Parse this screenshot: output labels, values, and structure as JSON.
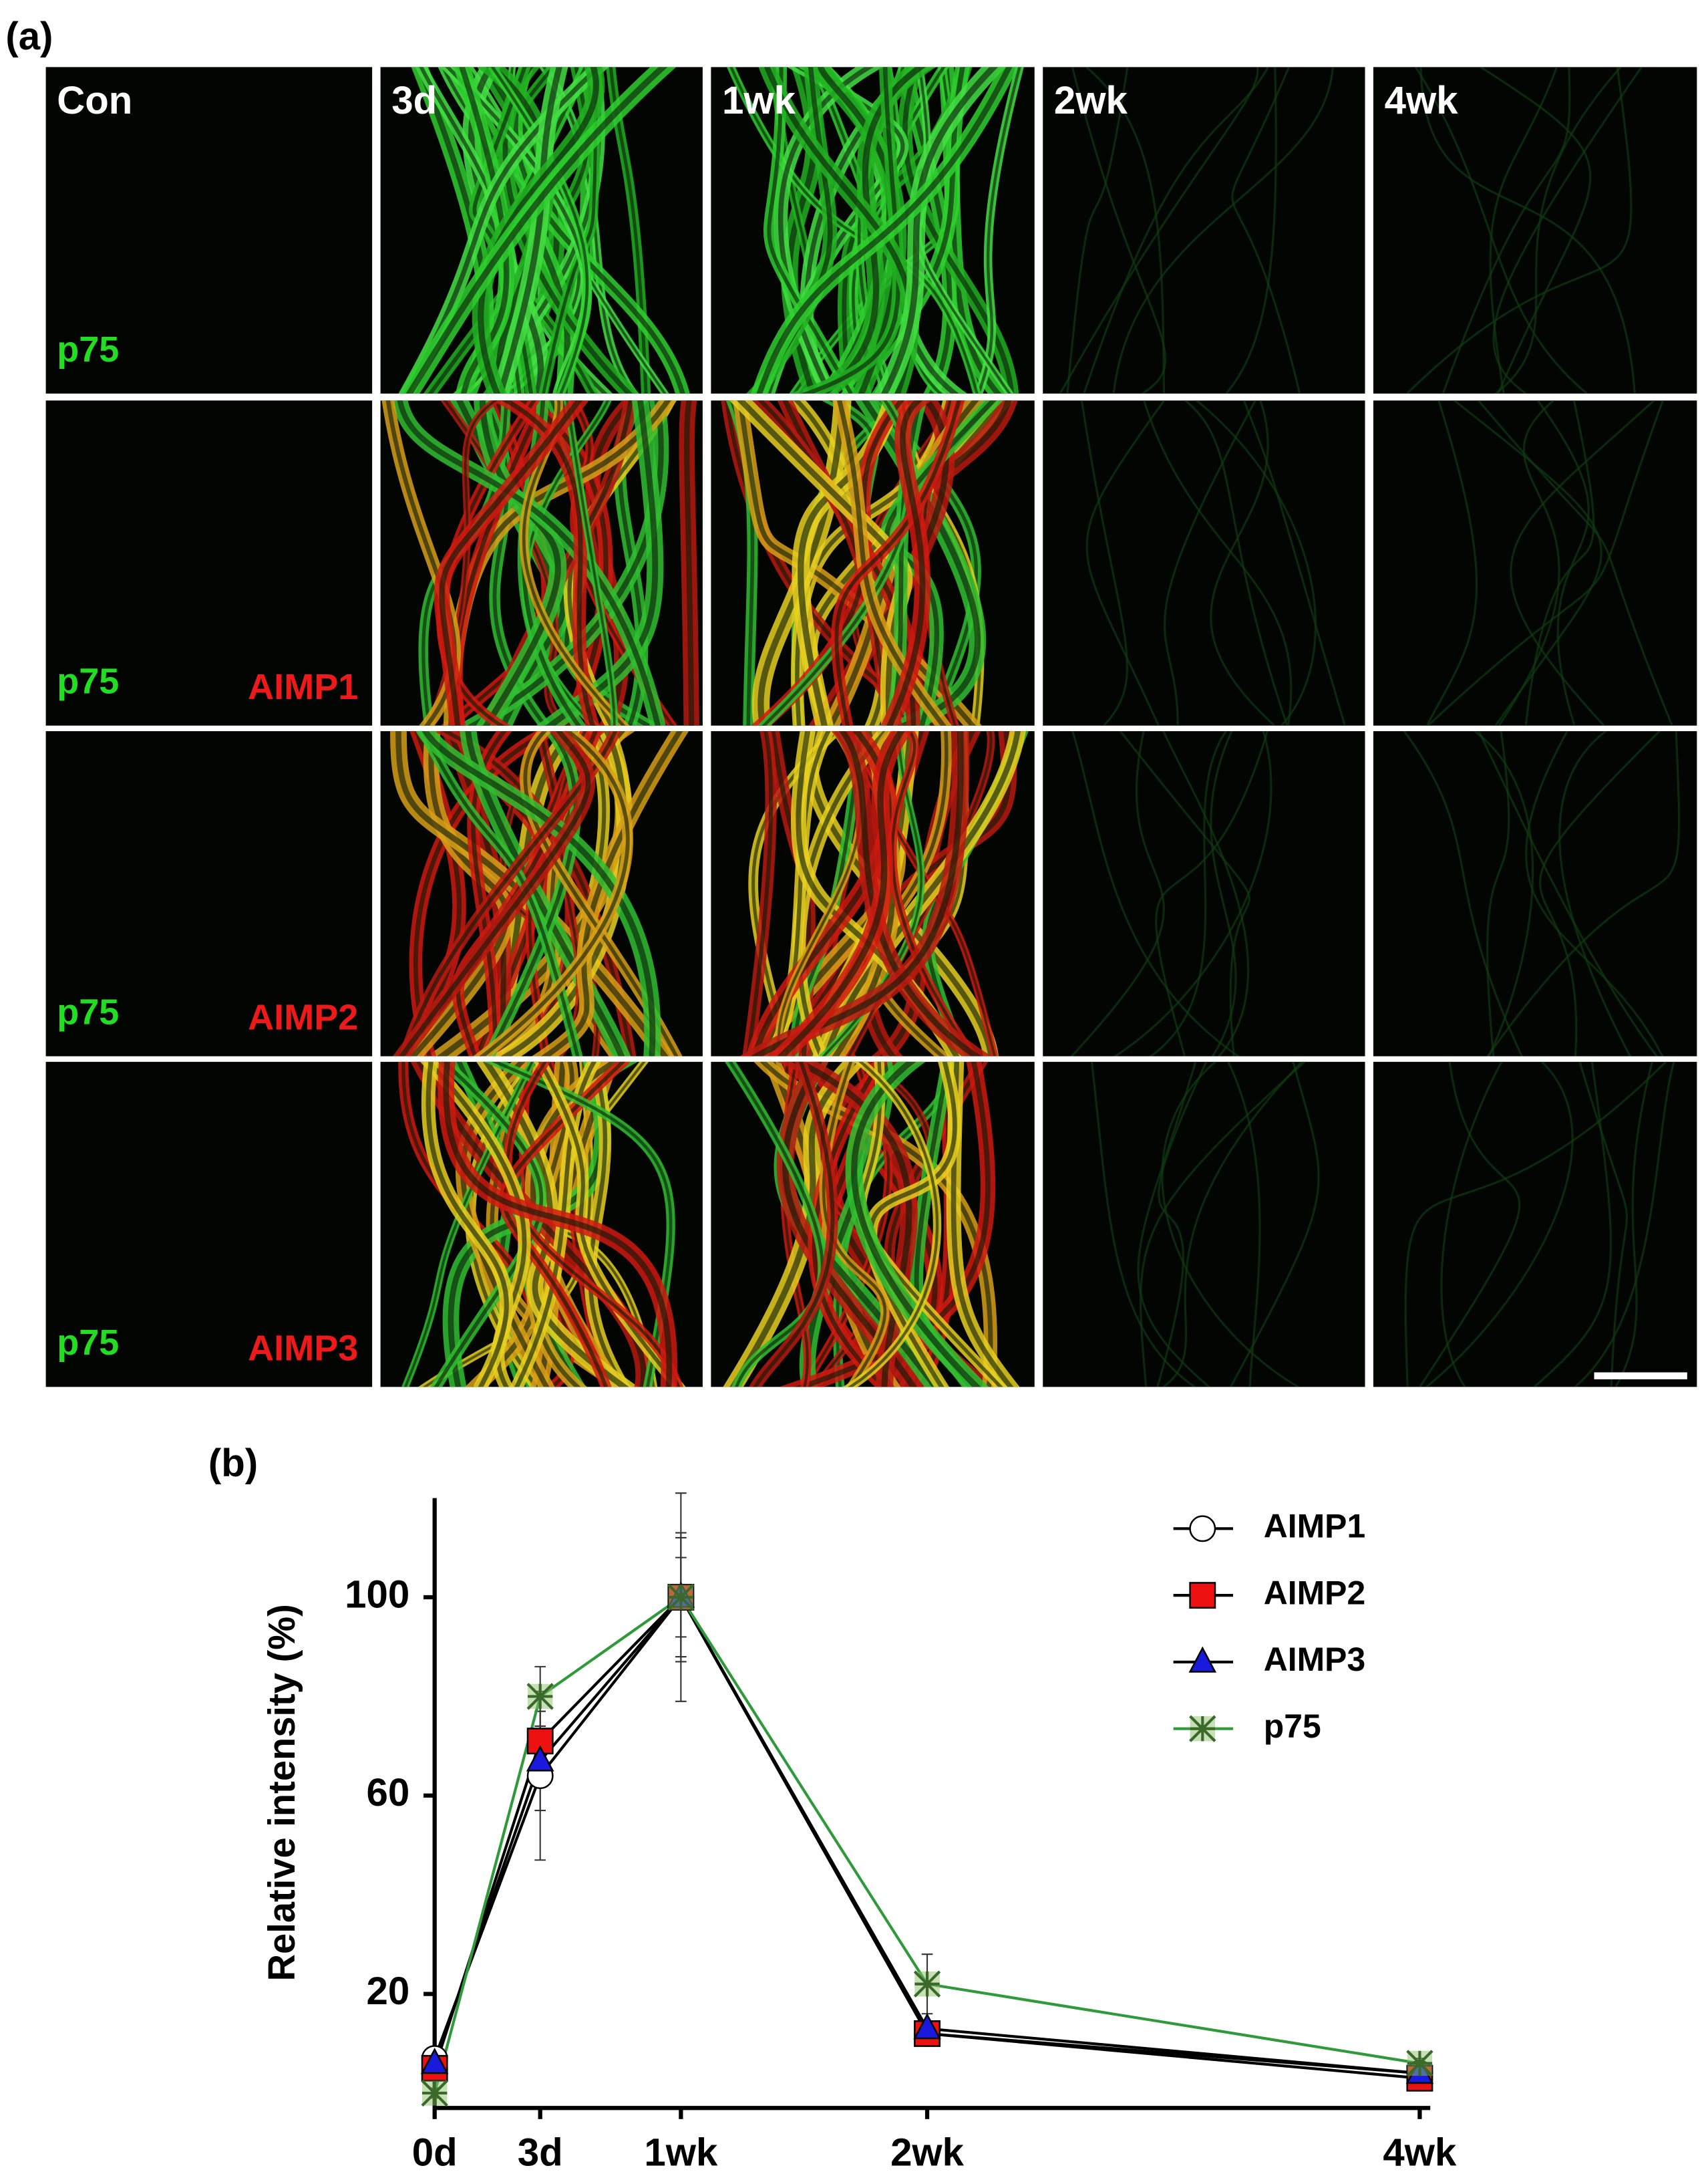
{
  "panel_a": {
    "label": "(a)",
    "columns": [
      "Con",
      "3d",
      "1wk",
      "2wk",
      "4wk"
    ],
    "rows": [
      {
        "green": "p75"
      },
      {
        "green": "p75",
        "red": "AIMP1"
      },
      {
        "green": "p75",
        "red": "AIMP2"
      },
      {
        "green": "p75",
        "red": "AIMP3"
      }
    ]
  },
  "chart_data": {
    "type": "line",
    "panel_label": "(b)",
    "y_label": "Relative intensity (%)",
    "x": [
      0,
      3,
      7,
      14,
      28
    ],
    "xlim": [
      0,
      28.3
    ],
    "xticks": [
      {
        "value": 0,
        "label": "0d"
      },
      {
        "value": 3,
        "label": "3d"
      },
      {
        "value": 7,
        "label": "1wk"
      },
      {
        "value": 14,
        "label": "2wk"
      },
      {
        "value": 28,
        "label": "4wk"
      }
    ],
    "ylim": [
      -3,
      120
    ],
    "yticks": [
      20,
      60,
      100
    ],
    "legend": "upper right",
    "series": [
      {
        "name": "AIMP1",
        "marker": "circle",
        "color": "#ffffff",
        "line_color": "#000000",
        "values": [
          7,
          64,
          100,
          12,
          4
        ],
        "errors": [
          1,
          17,
          13,
          1,
          1
        ]
      },
      {
        "name": "AIMP2",
        "marker": "square",
        "color": "#ee1111",
        "line_color": "#000000",
        "values": [
          5,
          71,
          100,
          12,
          3
        ],
        "errors": [
          1,
          3,
          8,
          2,
          1
        ]
      },
      {
        "name": "AIMP3",
        "marker": "triangle",
        "color": "#1a1adc",
        "line_color": "#000000",
        "values": [
          6,
          67,
          100,
          13,
          4
        ],
        "errors": [
          1,
          10,
          12,
          1,
          1
        ]
      },
      {
        "name": "p75",
        "marker": "star",
        "color": "#8fbf6a",
        "line_color": "#2e9a3a",
        "values": [
          0,
          80,
          100,
          22,
          6
        ],
        "errors": [
          1,
          6,
          21,
          6,
          1
        ]
      }
    ]
  }
}
